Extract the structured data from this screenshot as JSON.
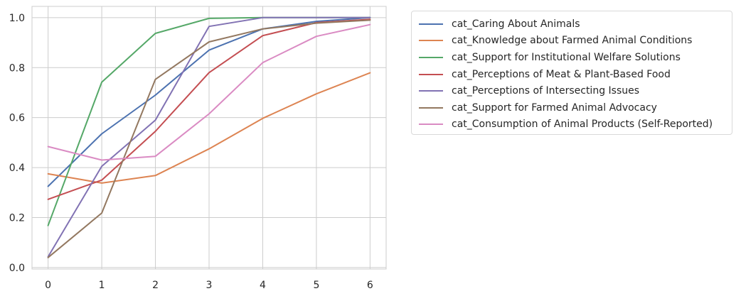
{
  "chart_data": {
    "type": "line",
    "x": [
      0,
      1,
      2,
      3,
      4,
      5,
      6
    ],
    "xlim": [
      -0.3,
      6.3
    ],
    "ylim": [
      -0.006,
      1.045
    ],
    "xticks": [
      0,
      1,
      2,
      3,
      4,
      5,
      6
    ],
    "yticks": [
      0.0,
      0.2,
      0.4,
      0.6,
      0.8,
      1.0
    ],
    "ytick_labels": [
      "0.0",
      "0.2",
      "0.4",
      "0.6",
      "0.8",
      "1.0"
    ],
    "xtick_labels": [
      "0",
      "1",
      "2",
      "3",
      "4",
      "5",
      "6"
    ],
    "grid": true,
    "legend_placement": "outside-right-top",
    "series": [
      {
        "name": "cat_Caring About Animals",
        "color": "#4c72b0",
        "values": [
          0.325,
          0.535,
          0.69,
          0.87,
          0.955,
          0.985,
          1.0
        ]
      },
      {
        "name": "cat_Knowledge about Farmed Animal Conditions",
        "color": "#dd8452",
        "values": [
          0.375,
          0.338,
          0.368,
          0.475,
          0.597,
          0.695,
          0.779
        ]
      },
      {
        "name": "cat_Support for Institutional Welfare Solutions",
        "color": "#55a868",
        "values": [
          0.168,
          0.742,
          0.937,
          0.997,
          1.0,
          1.0,
          1.0
        ]
      },
      {
        "name": "cat_Perceptions of Meat & Plant-Based Food",
        "color": "#c44e52",
        "values": [
          0.273,
          0.35,
          0.545,
          0.78,
          0.928,
          0.98,
          0.993
        ]
      },
      {
        "name": "cat_Perceptions of Intersecting Issues",
        "color": "#8172b3",
        "values": [
          0.043,
          0.405,
          0.59,
          0.965,
          1.0,
          1.0,
          1.0
        ]
      },
      {
        "name": "cat_Support for Farmed Animal Advocacy",
        "color": "#937860",
        "values": [
          0.04,
          0.218,
          0.753,
          0.903,
          0.955,
          0.978,
          0.99
        ]
      },
      {
        "name": "cat_Consumption of Animal Products (Self-Reported)",
        "color": "#da8bc3",
        "values": [
          0.484,
          0.43,
          0.445,
          0.615,
          0.82,
          0.925,
          0.972
        ]
      }
    ]
  }
}
